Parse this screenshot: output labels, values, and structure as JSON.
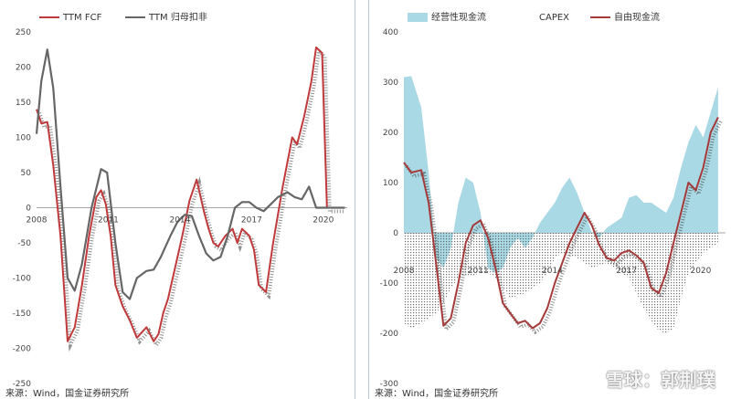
{
  "source_note": "来源：Wind，国金证券研究所",
  "watermark": "雪球：郭荆璞",
  "chart_data": [
    {
      "type": "line",
      "xlabels": [
        "2008",
        "2011",
        "2014",
        "2017",
        "2020"
      ],
      "ylim": [
        -250,
        250
      ],
      "yticks": [
        -250,
        -200,
        -150,
        -100,
        -50,
        0,
        50,
        100,
        150,
        200,
        250
      ],
      "legend_position": "top-left",
      "series": [
        {
          "name": "TTM FCF",
          "color": "#c0393b",
          "style": "line-with-dots",
          "x": [
            2008.0,
            2008.2,
            2008.45,
            2008.7,
            2009.0,
            2009.3,
            2009.6,
            2009.9,
            2010.2,
            2010.5,
            2010.7,
            2010.9,
            2011.1,
            2011.3,
            2011.6,
            2011.9,
            2012.2,
            2012.6,
            2012.9,
            2013.1,
            2013.3,
            2013.5,
            2013.8,
            2014.1,
            2014.4,
            2014.7,
            2015.0,
            2015.2,
            2015.4,
            2015.6,
            2015.9,
            2016.2,
            2016.4,
            2016.6,
            2016.9,
            2017.1,
            2017.3,
            2017.6,
            2017.9,
            2018.3,
            2018.7,
            2018.9,
            2019.2,
            2019.5,
            2019.7,
            2019.95,
            2020.15,
            2020.35,
            2020.55,
            2020.75
          ],
          "y": [
            140,
            120,
            122,
            60,
            -40,
            -190,
            -170,
            -110,
            -40,
            15,
            25,
            5,
            -40,
            -110,
            -140,
            -160,
            -185,
            -170,
            -190,
            -180,
            -150,
            -130,
            -85,
            -40,
            10,
            40,
            -5,
            -30,
            -50,
            -55,
            -40,
            -30,
            -50,
            -30,
            -40,
            -60,
            -110,
            -120,
            -50,
            30,
            100,
            90,
            130,
            180,
            228,
            220,
            0,
            0,
            0,
            0
          ]
        },
        {
          "name": "TTM 归母扣非",
          "color": "#666666",
          "style": "line",
          "x": [
            2008.0,
            2008.2,
            2008.45,
            2008.7,
            2009.0,
            2009.3,
            2009.6,
            2009.9,
            2010.3,
            2010.7,
            2010.95,
            2011.3,
            2011.6,
            2011.9,
            2012.2,
            2012.6,
            2012.9,
            2013.2,
            2013.6,
            2013.9,
            2014.2,
            2014.5,
            2014.8,
            2015.1,
            2015.4,
            2015.7,
            2016.0,
            2016.3,
            2016.6,
            2016.9,
            2017.2,
            2017.5,
            2017.8,
            2018.1,
            2018.5,
            2018.8,
            2019.1,
            2019.4,
            2019.7,
            2020.0,
            2020.2,
            2020.45,
            2020.7,
            2020.9
          ],
          "y": [
            105,
            180,
            225,
            170,
            30,
            -100,
            -118,
            -80,
            0,
            55,
            50,
            -50,
            -120,
            -130,
            -100,
            -90,
            -88,
            -70,
            -40,
            -20,
            -10,
            -12,
            -40,
            -65,
            -75,
            -70,
            -40,
            0,
            8,
            8,
            0,
            -5,
            5,
            15,
            22,
            15,
            12,
            30,
            0,
            0,
            0,
            0,
            0,
            0
          ]
        }
      ]
    },
    {
      "type": "area",
      "xlabels": [
        "2008",
        "2011",
        "2014",
        "2017",
        "2020"
      ],
      "ylim": [
        -300,
        400
      ],
      "yticks": [
        -300,
        -200,
        -100,
        0,
        100,
        200,
        300,
        400
      ],
      "legend_position": "top",
      "series": [
        {
          "name": "经营性现金流",
          "color": "#a9d9e4",
          "style": "area",
          "x": [
            2008.0,
            2008.3,
            2008.7,
            2009.0,
            2009.3,
            2009.6,
            2009.9,
            2010.2,
            2010.5,
            2010.8,
            2011.1,
            2011.4,
            2011.7,
            2012.0,
            2012.3,
            2012.6,
            2012.9,
            2013.2,
            2013.5,
            2013.8,
            2014.1,
            2014.4,
            2014.7,
            2015.0,
            2015.3,
            2015.6,
            2015.9,
            2016.2,
            2016.5,
            2016.8,
            2017.1,
            2017.4,
            2017.7,
            2018.0,
            2018.3,
            2018.6,
            2018.9,
            2019.2,
            2019.5,
            2019.8,
            2020.1,
            2020.4,
            2020.7
          ],
          "y": [
            310,
            312,
            250,
            120,
            -50,
            -70,
            -30,
            60,
            110,
            100,
            40,
            -70,
            -80,
            -70,
            -30,
            -10,
            -30,
            -10,
            20,
            40,
            60,
            90,
            110,
            80,
            40,
            0,
            -10,
            10,
            20,
            30,
            70,
            75,
            60,
            60,
            50,
            40,
            70,
            130,
            180,
            215,
            190,
            240,
            290
          ]
        },
        {
          "name": "CAPEX",
          "color": "#666666",
          "style": "dotted-area",
          "x": [
            2008.0,
            2008.3,
            2008.7,
            2009.0,
            2009.3,
            2009.6,
            2009.9,
            2010.2,
            2010.5,
            2010.8,
            2011.1,
            2011.4,
            2011.7,
            2012.0,
            2012.3,
            2012.6,
            2012.9,
            2013.2,
            2013.5,
            2013.8,
            2014.1,
            2014.4,
            2014.7,
            2015.0,
            2015.3,
            2015.6,
            2015.9,
            2016.2,
            2016.5,
            2016.8,
            2017.1,
            2017.4,
            2017.7,
            2018.0,
            2018.3,
            2018.6,
            2018.9,
            2019.2,
            2019.5,
            2019.8,
            2020.1,
            2020.4,
            2020.7
          ],
          "y": [
            -180,
            -190,
            -180,
            -170,
            -160,
            -140,
            -110,
            -90,
            -85,
            -85,
            -80,
            -80,
            -90,
            -110,
            -130,
            -125,
            -120,
            -110,
            -100,
            -80,
            -50,
            -40,
            -45,
            -50,
            -60,
            -70,
            -65,
            -60,
            -70,
            -80,
            -90,
            -120,
            -150,
            -175,
            -195,
            -200,
            -190,
            -130,
            -80,
            -60,
            -40,
            -30,
            -20
          ]
        },
        {
          "name": "自由现金流",
          "color": "#a53a3a",
          "style": "line-with-dots",
          "x": [
            2008.0,
            2008.3,
            2008.7,
            2009.0,
            2009.3,
            2009.6,
            2009.9,
            2010.2,
            2010.5,
            2010.8,
            2011.1,
            2011.4,
            2011.7,
            2012.0,
            2012.3,
            2012.6,
            2012.9,
            2013.2,
            2013.5,
            2013.8,
            2014.1,
            2014.4,
            2014.7,
            2015.0,
            2015.3,
            2015.6,
            2015.9,
            2016.2,
            2016.5,
            2016.8,
            2017.1,
            2017.4,
            2017.7,
            2018.0,
            2018.3,
            2018.6,
            2018.9,
            2019.2,
            2019.5,
            2019.8,
            2020.1,
            2020.4,
            2020.7
          ],
          "y": [
            140,
            120,
            125,
            60,
            -60,
            -185,
            -170,
            -100,
            -20,
            15,
            25,
            -10,
            -70,
            -140,
            -160,
            -180,
            -175,
            -190,
            -180,
            -150,
            -100,
            -60,
            -20,
            10,
            40,
            15,
            -25,
            -50,
            -55,
            -40,
            -35,
            -45,
            -60,
            -110,
            -120,
            -80,
            -20,
            40,
            100,
            85,
            130,
            200,
            230
          ]
        }
      ]
    }
  ]
}
